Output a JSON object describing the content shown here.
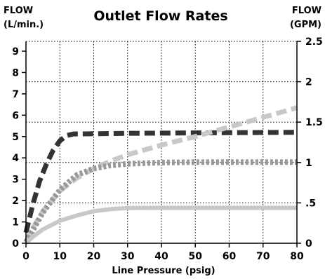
{
  "chart_data": {
    "type": "line",
    "title": "Outlet Flow Rates",
    "left_axis_label_line1": "FLOW",
    "left_axis_label_line2": "(L/min.)",
    "right_axis_label_line1": "FLOW",
    "right_axis_label_line2": "(GPM)",
    "xlabel": "Line Pressure (psig)",
    "xlim": [
      0,
      80
    ],
    "ylim": [
      0,
      9.46
    ],
    "y2lim": [
      0,
      2.5
    ],
    "grid": true,
    "x_ticks": [
      "0",
      "10",
      "20",
      "30",
      "40",
      "50",
      "60",
      "70",
      "80"
    ],
    "y_ticks": [
      "0",
      "1",
      "2",
      "3",
      "4",
      "5",
      "6",
      "7",
      "8",
      "9"
    ],
    "y2_ticks": [
      "0",
      ".5",
      "1",
      "1.5",
      "2",
      "2.5"
    ],
    "series": [
      {
        "style": "dashed",
        "color": "#333333",
        "points": [
          [
            0,
            0.5
          ],
          [
            2,
            1.8
          ],
          [
            4,
            2.9
          ],
          [
            6,
            3.7
          ],
          [
            8,
            4.35
          ],
          [
            10,
            4.8
          ],
          [
            12,
            5.05
          ],
          [
            14,
            5.12
          ],
          [
            20,
            5.13
          ],
          [
            30,
            5.15
          ],
          [
            40,
            5.16
          ],
          [
            50,
            5.17
          ],
          [
            60,
            5.18
          ],
          [
            70,
            5.19
          ],
          [
            80,
            5.2
          ]
        ]
      },
      {
        "style": "dashed",
        "color": "#c8c8c8",
        "points": [
          [
            0,
            0.05
          ],
          [
            2,
            0.7
          ],
          [
            5,
            1.5
          ],
          [
            10,
            2.45
          ],
          [
            15,
            3.05
          ],
          [
            20,
            3.5
          ],
          [
            25,
            3.85
          ],
          [
            30,
            4.15
          ],
          [
            40,
            4.6
          ],
          [
            50,
            5.0
          ],
          [
            60,
            5.45
          ],
          [
            70,
            5.9
          ],
          [
            80,
            6.35
          ]
        ]
      },
      {
        "style": "dotted",
        "color": "#999999",
        "points": [
          [
            0,
            0.05
          ],
          [
            2,
            0.6
          ],
          [
            5,
            1.45
          ],
          [
            10,
            2.5
          ],
          [
            15,
            3.2
          ],
          [
            20,
            3.5
          ],
          [
            25,
            3.65
          ],
          [
            30,
            3.72
          ],
          [
            40,
            3.78
          ],
          [
            50,
            3.8
          ],
          [
            60,
            3.8
          ],
          [
            70,
            3.8
          ],
          [
            80,
            3.8
          ]
        ]
      },
      {
        "style": "solid",
        "color": "#c8c8c8",
        "points": [
          [
            0,
            0.0
          ],
          [
            2,
            0.3
          ],
          [
            5,
            0.65
          ],
          [
            10,
            1.05
          ],
          [
            15,
            1.3
          ],
          [
            20,
            1.5
          ],
          [
            25,
            1.6
          ],
          [
            30,
            1.65
          ],
          [
            40,
            1.66
          ],
          [
            50,
            1.66
          ],
          [
            60,
            1.66
          ],
          [
            70,
            1.66
          ],
          [
            80,
            1.66
          ]
        ]
      }
    ]
  }
}
